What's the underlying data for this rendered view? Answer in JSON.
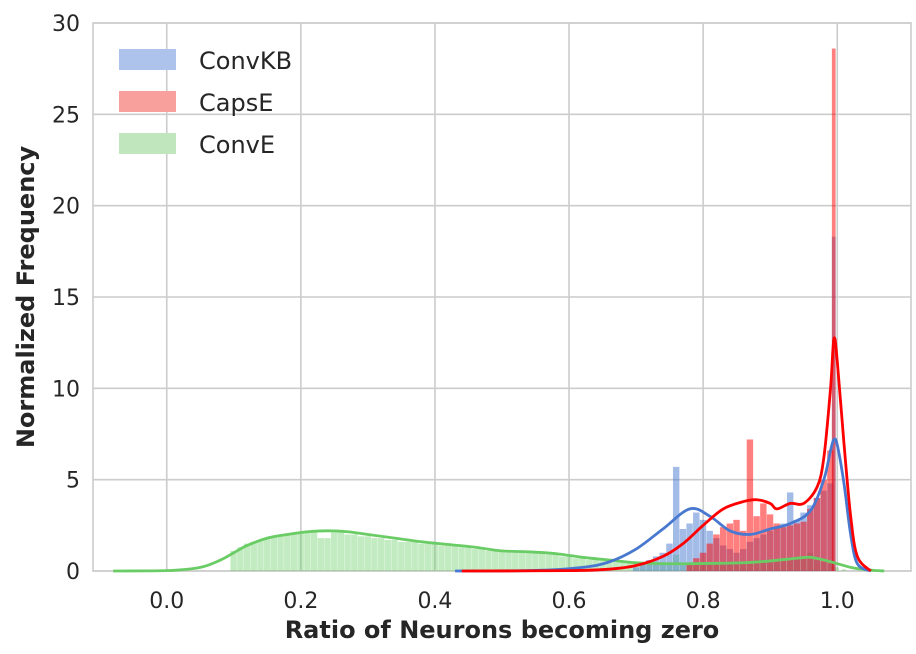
{
  "chart_data": {
    "type": "histogram",
    "title": "",
    "xlabel": "Ratio of Neurons becoming zero",
    "ylabel": "Normalized Frequency",
    "xlim": [
      -0.11,
      1.11
    ],
    "ylim": [
      0,
      30
    ],
    "xticks": [
      0.0,
      0.2,
      0.4,
      0.6,
      0.8,
      1.0
    ],
    "xtick_labels": [
      "0.0",
      "0.2",
      "0.4",
      "0.6",
      "0.8",
      "1.0"
    ],
    "yticks": [
      0,
      5,
      10,
      15,
      20,
      25,
      30
    ],
    "ytick_labels": [
      "0",
      "5",
      "10",
      "15",
      "20",
      "25",
      "30"
    ],
    "grid": true,
    "legend_position": "top-left",
    "series": [
      {
        "name": "ConvKB",
        "color": "#4878cf",
        "hist_color": "#aec3ec",
        "hist": [
          [
            0.7,
            0.2
          ],
          [
            0.71,
            0.4
          ],
          [
            0.72,
            0.6
          ],
          [
            0.73,
            0.8
          ],
          [
            0.74,
            1.0
          ],
          [
            0.75,
            1.5
          ],
          [
            0.76,
            5.7
          ],
          [
            0.77,
            2.3
          ],
          [
            0.78,
            2.6
          ],
          [
            0.79,
            3.2
          ],
          [
            0.8,
            2.8
          ],
          [
            0.81,
            2.2
          ],
          [
            0.82,
            1.8
          ],
          [
            0.83,
            1.4
          ],
          [
            0.84,
            1.2
          ],
          [
            0.85,
            1.0
          ],
          [
            0.86,
            1.2
          ],
          [
            0.87,
            1.6
          ],
          [
            0.88,
            1.8
          ],
          [
            0.89,
            2.0
          ],
          [
            0.9,
            2.2
          ],
          [
            0.91,
            2.4
          ],
          [
            0.92,
            2.6
          ],
          [
            0.93,
            4.3
          ],
          [
            0.94,
            2.8
          ],
          [
            0.95,
            3.2
          ],
          [
            0.96,
            3.6
          ],
          [
            0.97,
            4.0
          ],
          [
            0.98,
            4.4
          ],
          [
            0.99,
            4.8
          ],
          [
            0.995,
            18.3
          ]
        ],
        "kde": [
          [
            0.43,
            0.0
          ],
          [
            0.55,
            0.03
          ],
          [
            0.62,
            0.2
          ],
          [
            0.66,
            0.5
          ],
          [
            0.7,
            1.2
          ],
          [
            0.74,
            2.3
          ],
          [
            0.78,
            3.4
          ],
          [
            0.81,
            3.0
          ],
          [
            0.84,
            2.2
          ],
          [
            0.87,
            2.0
          ],
          [
            0.9,
            2.3
          ],
          [
            0.93,
            2.6
          ],
          [
            0.96,
            3.3
          ],
          [
            0.98,
            5.0
          ],
          [
            0.99,
            6.6
          ],
          [
            0.995,
            7.2
          ],
          [
            1.0,
            6.9
          ],
          [
            1.01,
            4.8
          ],
          [
            1.02,
            2.0
          ],
          [
            1.03,
            0.4
          ],
          [
            1.05,
            0.0
          ]
        ]
      },
      {
        "name": "CapsE",
        "color": "#ff0000",
        "hist_color": "#f8a09c",
        "hist": [
          [
            0.78,
            0.4
          ],
          [
            0.79,
            0.7
          ],
          [
            0.8,
            1.0
          ],
          [
            0.81,
            1.5
          ],
          [
            0.82,
            2.0
          ],
          [
            0.83,
            2.4
          ],
          [
            0.84,
            2.6
          ],
          [
            0.85,
            2.8
          ],
          [
            0.86,
            2.2
          ],
          [
            0.87,
            7.2
          ],
          [
            0.88,
            3.0
          ],
          [
            0.89,
            3.7
          ],
          [
            0.9,
            3.1
          ],
          [
            0.91,
            2.6
          ],
          [
            0.92,
            2.4
          ],
          [
            0.93,
            2.5
          ],
          [
            0.94,
            2.6
          ],
          [
            0.95,
            2.7
          ],
          [
            0.96,
            3.4
          ],
          [
            0.97,
            4.0
          ],
          [
            0.98,
            5.0
          ],
          [
            0.99,
            6.6
          ],
          [
            0.995,
            28.6
          ]
        ],
        "kde": [
          [
            0.44,
            0.0
          ],
          [
            0.6,
            0.02
          ],
          [
            0.66,
            0.1
          ],
          [
            0.7,
            0.3
          ],
          [
            0.74,
            0.8
          ],
          [
            0.77,
            1.5
          ],
          [
            0.8,
            2.5
          ],
          [
            0.83,
            3.4
          ],
          [
            0.86,
            3.8
          ],
          [
            0.88,
            3.9
          ],
          [
            0.9,
            3.7
          ],
          [
            0.91,
            3.4
          ],
          [
            0.93,
            3.7
          ],
          [
            0.95,
            3.7
          ],
          [
            0.97,
            4.6
          ],
          [
            0.98,
            6.2
          ],
          [
            0.99,
            10.0
          ],
          [
            0.995,
            12.7
          ],
          [
            1.0,
            11.5
          ],
          [
            1.01,
            7.0
          ],
          [
            1.02,
            3.0
          ],
          [
            1.03,
            0.8
          ],
          [
            1.05,
            0.0
          ]
        ]
      },
      {
        "name": "ConvE",
        "color": "#6acc65",
        "hist_color": "#bfe6bc",
        "hist": [
          [
            0.1,
            1.1
          ],
          [
            0.11,
            1.3
          ],
          [
            0.12,
            1.5
          ],
          [
            0.13,
            1.6
          ],
          [
            0.14,
            1.7
          ],
          [
            0.15,
            1.8
          ],
          [
            0.16,
            1.9
          ],
          [
            0.17,
            2.0
          ],
          [
            0.18,
            2.0
          ],
          [
            0.19,
            2.1
          ],
          [
            0.2,
            2.1
          ],
          [
            0.21,
            2.2
          ],
          [
            0.22,
            2.2
          ],
          [
            0.23,
            1.8
          ],
          [
            0.24,
            1.8
          ],
          [
            0.25,
            2.1
          ],
          [
            0.26,
            2.1
          ],
          [
            0.27,
            2.0
          ],
          [
            0.28,
            2.0
          ],
          [
            0.29,
            1.9
          ],
          [
            0.3,
            1.9
          ],
          [
            0.31,
            1.8
          ],
          [
            0.32,
            1.8
          ],
          [
            0.33,
            1.7
          ],
          [
            0.34,
            1.7
          ],
          [
            0.35,
            1.6
          ],
          [
            0.36,
            1.6
          ],
          [
            0.37,
            1.6
          ],
          [
            0.38,
            1.5
          ],
          [
            0.39,
            1.5
          ],
          [
            0.4,
            1.5
          ],
          [
            0.41,
            1.4
          ],
          [
            0.42,
            1.4
          ],
          [
            0.43,
            1.4
          ],
          [
            0.44,
            1.3
          ],
          [
            0.45,
            1.3
          ],
          [
            0.46,
            1.2
          ],
          [
            0.47,
            1.2
          ],
          [
            0.48,
            1.1
          ],
          [
            0.49,
            1.1
          ],
          [
            0.5,
            1.1
          ],
          [
            0.51,
            1.0
          ],
          [
            0.52,
            1.0
          ],
          [
            0.53,
            1.1
          ],
          [
            0.54,
            1.1
          ],
          [
            0.55,
            1.0
          ],
          [
            0.56,
            1.0
          ],
          [
            0.57,
            0.9
          ],
          [
            0.58,
            0.9
          ],
          [
            0.59,
            0.8
          ],
          [
            0.6,
            0.8
          ],
          [
            0.61,
            0.7
          ],
          [
            0.62,
            0.7
          ],
          [
            0.63,
            0.6
          ],
          [
            0.64,
            0.6
          ],
          [
            0.65,
            0.6
          ],
          [
            0.66,
            0.5
          ],
          [
            0.67,
            0.5
          ],
          [
            0.68,
            0.5
          ],
          [
            0.69,
            0.5
          ],
          [
            0.7,
            0.4
          ],
          [
            0.71,
            0.4
          ],
          [
            0.72,
            0.4
          ],
          [
            0.73,
            0.4
          ],
          [
            0.74,
            0.4
          ],
          [
            0.75,
            0.4
          ],
          [
            0.76,
            0.9
          ],
          [
            0.77,
            0.4
          ],
          [
            0.78,
            0.4
          ],
          [
            0.79,
            0.4
          ],
          [
            0.8,
            0.4
          ],
          [
            0.81,
            0.4
          ],
          [
            0.82,
            0.4
          ],
          [
            0.83,
            0.4
          ],
          [
            0.84,
            0.5
          ],
          [
            0.85,
            0.5
          ],
          [
            0.86,
            0.5
          ],
          [
            0.87,
            0.5
          ],
          [
            0.88,
            0.6
          ],
          [
            0.89,
            0.6
          ],
          [
            0.9,
            0.6
          ],
          [
            0.91,
            0.6
          ],
          [
            0.92,
            0.6
          ],
          [
            0.93,
            0.6
          ],
          [
            0.94,
            0.7
          ],
          [
            0.95,
            0.8
          ],
          [
            0.96,
            1.0
          ],
          [
            0.97,
            0.6
          ],
          [
            0.98,
            0.5
          ],
          [
            0.99,
            0.4
          ],
          [
            0.995,
            0.3
          ],
          [
            1.0,
            0.2
          ],
          [
            1.01,
            0.1
          ]
        ],
        "kde": [
          [
            -0.08,
            0.0
          ],
          [
            0.0,
            0.02
          ],
          [
            0.05,
            0.2
          ],
          [
            0.08,
            0.6
          ],
          [
            0.1,
            1.0
          ],
          [
            0.12,
            1.4
          ],
          [
            0.15,
            1.8
          ],
          [
            0.18,
            2.0
          ],
          [
            0.21,
            2.15
          ],
          [
            0.24,
            2.2
          ],
          [
            0.27,
            2.15
          ],
          [
            0.3,
            2.0
          ],
          [
            0.34,
            1.8
          ],
          [
            0.38,
            1.6
          ],
          [
            0.42,
            1.45
          ],
          [
            0.46,
            1.3
          ],
          [
            0.5,
            1.1
          ],
          [
            0.54,
            1.05
          ],
          [
            0.58,
            0.95
          ],
          [
            0.62,
            0.75
          ],
          [
            0.66,
            0.6
          ],
          [
            0.7,
            0.45
          ],
          [
            0.74,
            0.4
          ],
          [
            0.78,
            0.4
          ],
          [
            0.82,
            0.42
          ],
          [
            0.86,
            0.45
          ],
          [
            0.9,
            0.55
          ],
          [
            0.94,
            0.7
          ],
          [
            0.96,
            0.75
          ],
          [
            0.98,
            0.6
          ],
          [
            1.0,
            0.4
          ],
          [
            1.02,
            0.2
          ],
          [
            1.04,
            0.08
          ],
          [
            1.06,
            0.02
          ],
          [
            1.07,
            0.0
          ]
        ]
      }
    ]
  }
}
